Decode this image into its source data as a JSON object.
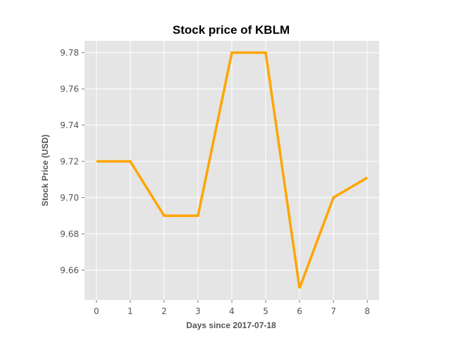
{
  "chart_data": {
    "type": "line",
    "title": "Stock price of KBLM",
    "xlabel": "Days since 2017-07-18",
    "ylabel": "Stock Price (USD)",
    "x": [
      0,
      1,
      2,
      3,
      4,
      5,
      6,
      7,
      8
    ],
    "series": [
      {
        "values": [
          9.72,
          9.72,
          9.69,
          9.69,
          9.78,
          9.78,
          9.65,
          9.7,
          9.711
        ]
      }
    ],
    "xticks": [
      "0",
      "1",
      "2",
      "3",
      "4",
      "5",
      "6",
      "7",
      "8"
    ],
    "yticks": [
      "9.66",
      "9.68",
      "9.70",
      "9.72",
      "9.74",
      "9.76",
      "9.78"
    ],
    "xlim": [
      -0.35,
      8.35
    ],
    "ylim": [
      9.6435,
      9.7865
    ],
    "grid": true,
    "line_color": "#ffa500",
    "plot_background": "#e5e5e5"
  }
}
